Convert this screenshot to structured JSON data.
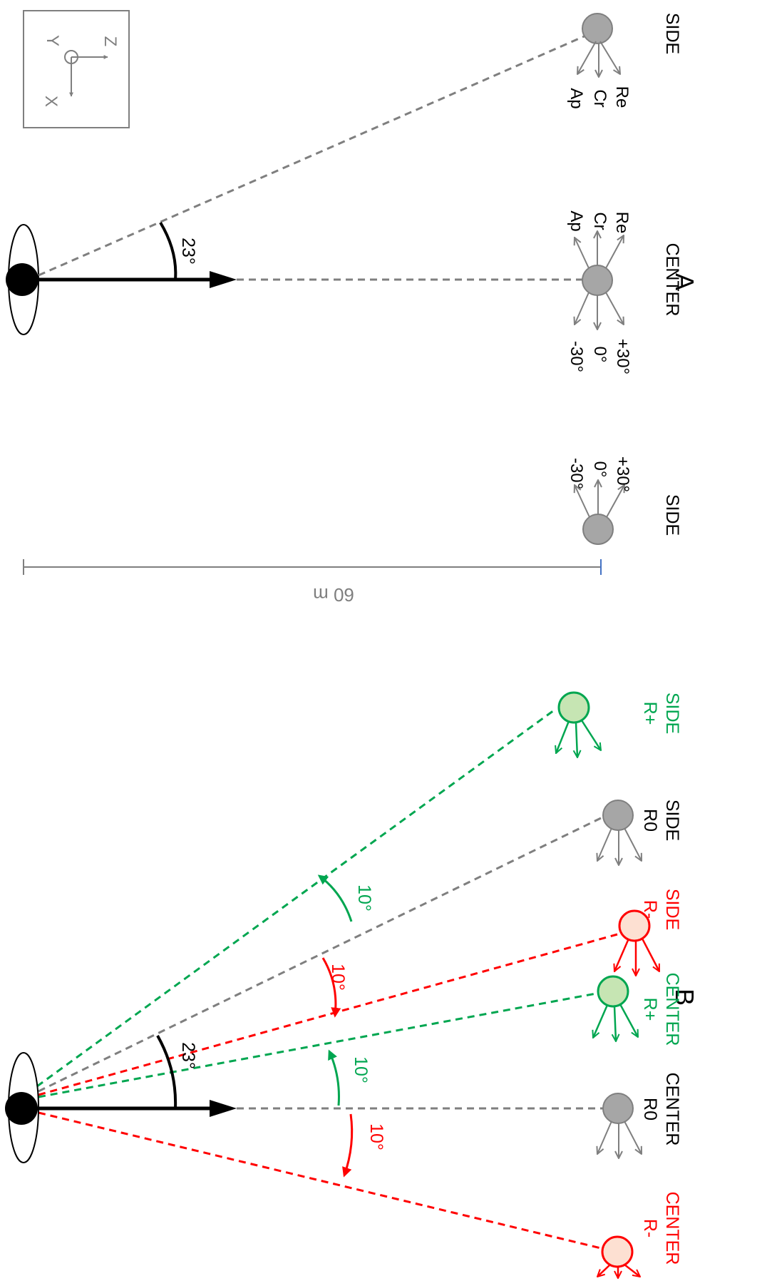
{
  "panels": {
    "a": {
      "letter": "A",
      "angle_label": "23°",
      "targets": {
        "side_top": "SIDE",
        "center": "CENTER",
        "side_bottom": "SIDE"
      },
      "direction_names": {
        "re": "Re",
        "cr": "Cr",
        "ap": "Ap"
      },
      "direction_angles": {
        "plus": "+30°",
        "zero": "0°",
        "minus": "-30°"
      },
      "distance_label": "60 m",
      "axes": {
        "x": "X",
        "y": "Y",
        "z": "Z"
      }
    },
    "b": {
      "letter": "B",
      "angle_label": "23°",
      "offset_label": "10°",
      "side_rplus": {
        "name": "SIDE",
        "cond": "R+"
      },
      "side_r0": {
        "name": "SIDE",
        "cond": "R0"
      },
      "side_rminus": {
        "name": "SIDE",
        "cond": "R-"
      },
      "center_rplus": {
        "name": "CENTER",
        "cond": "R+"
      },
      "center_r0": {
        "name": "CENTER",
        "cond": "R0"
      },
      "center_rminus": {
        "name": "CENTER",
        "cond": "R-"
      }
    }
  },
  "colors": {
    "gray": "#7f7f7f",
    "green": "#00a650",
    "green_fill": "#c6e5b3",
    "red": "#ff0000",
    "red_fill": "#fde0d2",
    "black": "#000000",
    "scale_tick": "#4472c4"
  }
}
